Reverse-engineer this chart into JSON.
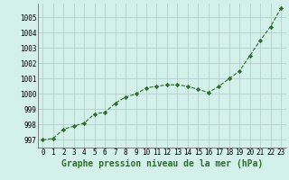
{
  "x": [
    0,
    1,
    2,
    3,
    4,
    5,
    6,
    7,
    8,
    9,
    10,
    11,
    12,
    13,
    14,
    15,
    16,
    17,
    18,
    19,
    20,
    21,
    22,
    23
  ],
  "y": [
    997.0,
    997.1,
    997.7,
    997.9,
    998.1,
    998.7,
    998.8,
    999.4,
    999.8,
    1000.0,
    1000.4,
    1000.5,
    1000.6,
    1000.6,
    1000.5,
    1000.3,
    1000.1,
    1000.5,
    1001.0,
    1001.5,
    1002.5,
    1003.5,
    1004.4,
    1005.6
  ],
  "line_color": "#2d6e2d",
  "marker": "D",
  "marker_size": 2.2,
  "bg_color": "#d4f0ea",
  "grid_color": "#b0c8c4",
  "xlabel": "Graphe pression niveau de la mer (hPa)",
  "xlabel_fontsize": 7.0,
  "ylabel_ticks": [
    997,
    998,
    999,
    1000,
    1001,
    1002,
    1003,
    1004,
    1005
  ],
  "xlim": [
    -0.5,
    23.5
  ],
  "ylim": [
    996.5,
    1005.9
  ],
  "xtick_fontsize": 5.5,
  "ytick_fontsize": 5.5,
  "linewidth": 0.8
}
